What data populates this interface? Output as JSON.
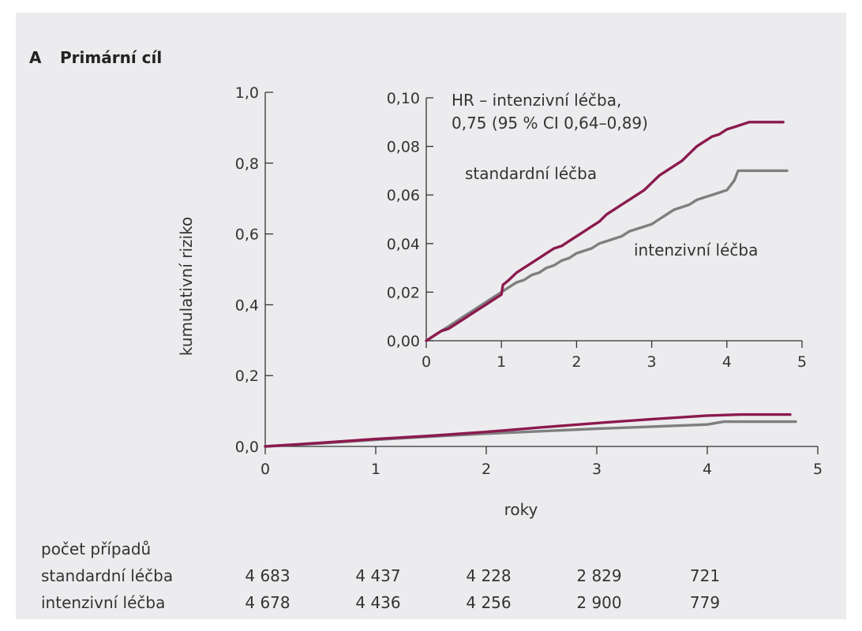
{
  "panel": {
    "letter": "A",
    "title": "Primární cíl"
  },
  "colors": {
    "standard": "#8b1a4e",
    "intensive": "#7f7f7f",
    "background": "#ececee",
    "axis": "#333333"
  },
  "chart_data": [
    {
      "type": "line",
      "title": "",
      "xlabel": "roky",
      "ylabel": "kumulativní riziko",
      "xlim": [
        0,
        5
      ],
      "ylim": [
        0,
        1.0
      ],
      "xticks": [
        "0",
        "1",
        "2",
        "3",
        "4",
        "5"
      ],
      "yticks": [
        "0,0",
        "0,2",
        "0,4",
        "0,6",
        "0,8",
        "1,0"
      ],
      "series": [
        {
          "name": "standardní léčba",
          "color": "#8b1a4e",
          "x": [
            0,
            0.5,
            1.0,
            1.5,
            2.0,
            2.5,
            3.0,
            3.5,
            4.0,
            4.3,
            4.75
          ],
          "y": [
            0,
            0.01,
            0.021,
            0.03,
            0.041,
            0.054,
            0.066,
            0.077,
            0.087,
            0.09,
            0.09
          ]
        },
        {
          "name": "intenzivní léčba",
          "color": "#7f7f7f",
          "x": [
            0,
            0.5,
            1.0,
            1.5,
            2.0,
            2.5,
            3.0,
            3.5,
            4.0,
            4.15,
            4.8
          ],
          "y": [
            0,
            0.009,
            0.019,
            0.028,
            0.036,
            0.043,
            0.05,
            0.056,
            0.062,
            0.07,
            0.07
          ]
        }
      ]
    },
    {
      "type": "line",
      "title": "",
      "xlabel": "",
      "ylabel": "",
      "xlim": [
        0,
        5
      ],
      "ylim": [
        0,
        0.1
      ],
      "xticks": [
        "0",
        "1",
        "2",
        "3",
        "4",
        "5"
      ],
      "yticks": [
        "0,00",
        "0,02",
        "0,04",
        "0,06",
        "0,08",
        "0,10"
      ],
      "annotation_lines": [
        "HR – intenzivní léčba,",
        "0,75 (95 % CI 0,64–0,89)"
      ],
      "series": [
        {
          "name": "standardní léčba",
          "color": "#8b1a4e",
          "x": [
            0,
            0.1,
            0.2,
            0.3,
            0.4,
            0.5,
            0.6,
            0.7,
            0.8,
            0.9,
            1.0,
            1.02,
            1.1,
            1.2,
            1.3,
            1.4,
            1.5,
            1.6,
            1.7,
            1.8,
            1.9,
            2.0,
            2.1,
            2.2,
            2.3,
            2.4,
            2.5,
            2.6,
            2.7,
            2.8,
            2.9,
            3.0,
            3.1,
            3.2,
            3.3,
            3.4,
            3.5,
            3.6,
            3.7,
            3.8,
            3.9,
            4.0,
            4.1,
            4.2,
            4.3,
            4.5,
            4.75
          ],
          "y": [
            0,
            0.002,
            0.004,
            0.005,
            0.007,
            0.009,
            0.011,
            0.013,
            0.015,
            0.017,
            0.019,
            0.023,
            0.025,
            0.028,
            0.03,
            0.032,
            0.034,
            0.036,
            0.038,
            0.039,
            0.041,
            0.043,
            0.045,
            0.047,
            0.049,
            0.052,
            0.054,
            0.056,
            0.058,
            0.06,
            0.062,
            0.065,
            0.068,
            0.07,
            0.072,
            0.074,
            0.077,
            0.08,
            0.082,
            0.084,
            0.085,
            0.087,
            0.088,
            0.089,
            0.09,
            0.09,
            0.09
          ]
        },
        {
          "name": "intenzivní léčba",
          "color": "#7f7f7f",
          "x": [
            0,
            0.1,
            0.2,
            0.3,
            0.4,
            0.5,
            0.6,
            0.7,
            0.8,
            0.9,
            1.0,
            1.1,
            1.2,
            1.3,
            1.4,
            1.5,
            1.6,
            1.7,
            1.8,
            1.9,
            2.0,
            2.1,
            2.2,
            2.3,
            2.4,
            2.5,
            2.6,
            2.7,
            2.8,
            2.9,
            3.0,
            3.1,
            3.2,
            3.3,
            3.4,
            3.5,
            3.6,
            3.7,
            3.8,
            3.9,
            4.0,
            4.05,
            4.1,
            4.15,
            4.3,
            4.5,
            4.8
          ],
          "y": [
            0,
            0.002,
            0.004,
            0.006,
            0.008,
            0.01,
            0.012,
            0.014,
            0.016,
            0.018,
            0.02,
            0.022,
            0.024,
            0.025,
            0.027,
            0.028,
            0.03,
            0.031,
            0.033,
            0.034,
            0.036,
            0.037,
            0.038,
            0.04,
            0.041,
            0.042,
            0.043,
            0.045,
            0.046,
            0.047,
            0.048,
            0.05,
            0.052,
            0.054,
            0.055,
            0.056,
            0.058,
            0.059,
            0.06,
            0.061,
            0.062,
            0.064,
            0.066,
            0.07,
            0.07,
            0.07,
            0.07
          ]
        }
      ]
    }
  ],
  "risk_table": {
    "heading": "počet případů",
    "rows": [
      {
        "label": "standardní léčba",
        "values": [
          "4 683",
          "4 437",
          "4 228",
          "2 829",
          "721"
        ]
      },
      {
        "label": "intenzivní léčba",
        "values": [
          "4 678",
          "4 436",
          "4 256",
          "2 900",
          "779"
        ]
      }
    ]
  }
}
